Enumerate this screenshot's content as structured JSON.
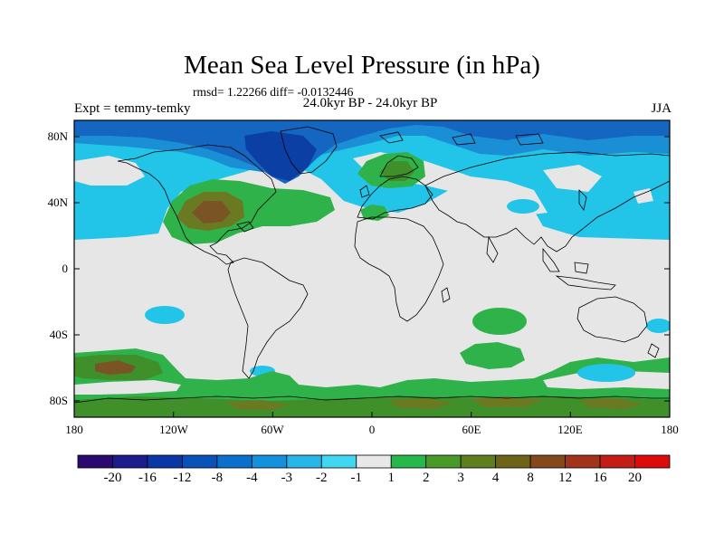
{
  "title": "Mean Sea Level Pressure (in hPa)",
  "stats": "rmsd= 1.22266 diff= -0.0132446",
  "left_label": "Expt = temmy-temky",
  "center_label": "24.0kyr BP - 24.0kyr BP",
  "right_label": "JJA",
  "lat_labels": [
    "80N",
    "40N",
    "0",
    "40S",
    "80S"
  ],
  "lon_labels": [
    "180",
    "120W",
    "60W",
    "0",
    "60E",
    "120E",
    "180"
  ],
  "colorbar": {
    "colors": [
      "#2a0a6e",
      "#1c1c8f",
      "#0b36a6",
      "#0a52b8",
      "#0b6fcc",
      "#1490dc",
      "#28b5e8",
      "#41d7f0",
      "#e8e8e8",
      "#26b84a",
      "#4a9a2a",
      "#5f7f1e",
      "#6e6419",
      "#84481a",
      "#a3321a",
      "#c21e16",
      "#dc0c0c"
    ],
    "tick_labels": [
      "-20",
      "-16",
      "-12",
      "-8",
      "-4",
      "-3",
      "-2",
      "-1",
      "1",
      "2",
      "3",
      "4",
      "8",
      "12",
      "16",
      "20"
    ]
  },
  "map": {
    "colors": {
      "background": "#e6e6e6",
      "light_blue": "#22c4e8",
      "mid_blue": "#1a8fd6",
      "dark_blue": "#1466c0",
      "navy": "#0b3fa3",
      "green": "#2fb24a",
      "mid_green": "#3f8f2a",
      "olive": "#6b7a22",
      "brown": "#7a5424",
      "dark_brown": "#8b4a1e",
      "coast": "#000000",
      "frame": "#000000"
    }
  }
}
